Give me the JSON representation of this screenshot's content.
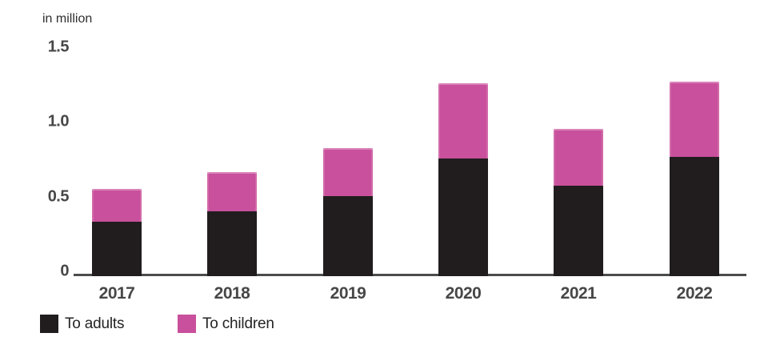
{
  "chart_data": {
    "type": "bar",
    "stacked": true,
    "title": "in million",
    "categories": [
      "2017",
      "2018",
      "2019",
      "2020",
      "2021",
      "2022"
    ],
    "series": [
      {
        "name": "To adults",
        "color": "#211d1e",
        "values": [
          0.36,
          0.43,
          0.53,
          0.78,
          0.6,
          0.79
        ]
      },
      {
        "name": "To children",
        "color": "#c9509c",
        "values": [
          0.22,
          0.26,
          0.32,
          0.5,
          0.38,
          0.5
        ]
      }
    ],
    "xlabel": "",
    "ylabel": "in million",
    "ylim": [
      0,
      1.5
    ],
    "yticks": [
      0,
      0.5,
      1.0,
      1.5
    ],
    "ytick_labels": [
      "0",
      "0.5",
      "1.0",
      "1.5"
    ],
    "grid": false,
    "legend_position": "bottom-left",
    "axis_color": "#4c4c4c",
    "background_color": "#ffffff"
  }
}
